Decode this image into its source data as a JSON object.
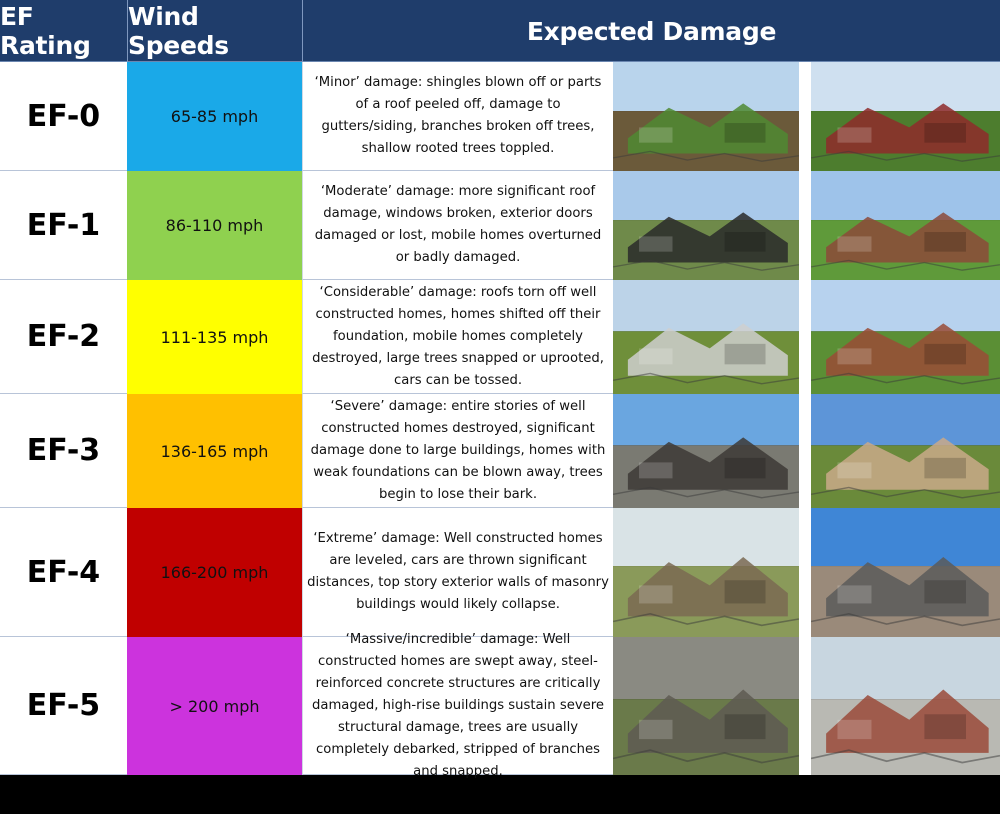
{
  "header": {
    "col_rating": "EF Rating",
    "col_speed": "Wind Speeds",
    "col_damage": "Expected Damage"
  },
  "rows": [
    {
      "rating": "EF-0",
      "speed": "65-85 mph",
      "color": "#1aa9e8",
      "damage": "‘Minor’ damage: shingles blown off or parts of a roof peeled off, damage to gutters/siding, branches broken off trees, shallow rooted trees toppled."
    },
    {
      "rating": "EF-1",
      "speed": "86-110 mph",
      "color": "#8fd14f",
      "damage": "‘Moderate’ damage: more significant roof damage, windows broken, exterior doors damaged or lost, mobile homes overturned or badly damaged."
    },
    {
      "rating": "EF-2",
      "speed": "111-135 mph",
      "color": "#ffff00",
      "damage": "‘Considerable’ damage: roofs torn off well constructed homes, homes shifted off their foundation, mobile homes completely destroyed, large trees snapped or uprooted, cars can be tossed."
    },
    {
      "rating": "EF-3",
      "speed": "136-165 mph",
      "color": "#ffc000",
      "damage": "‘Severe’ damage:  entire stories of well constructed homes destroyed, significant damage done to large buildings, homes with weak foundations can be blown away, trees begin to lose their bark."
    },
    {
      "rating": "EF-4",
      "speed": "166-200 mph",
      "color": "#c00000",
      "damage": "‘Extreme’ damage: Well constructed homes are leveled, cars are thrown significant distances, top story exterior walls of masonry buildings would likely collapse."
    },
    {
      "rating": "EF-5",
      "speed": "> 200 mph",
      "color": "#cc33dd",
      "damage": "‘Massive/incredible’ damage:  Well constructed homes are swept away, steel-reinforced concrete structures are critically damaged, high-rise buildings sustain severe structural damage, trees are usually completely debarked, stripped of branches and snapped."
    }
  ],
  "photos": [
    "photo-broken-trees",
    "photo-damaged-red-barn",
    "photo-overturned-trailer",
    "photo-damaged-brick-house",
    "photo-destroyed-mobile-home-debris",
    "photo-roofless-brick-house",
    "photo-damaged-large-building",
    "photo-destroyed-homes-cars",
    "photo-uprooted-tree-wrecked-car",
    "photo-leveled-buildings",
    "photo-scoured-road",
    "photo-swept-foundation"
  ]
}
